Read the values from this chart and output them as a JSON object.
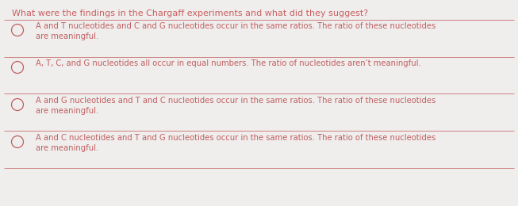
{
  "background_color": "#f0eded",
  "title": "What were the findings in the Chargaff experiments and what did they suggest?",
  "title_color": "#c96060",
  "title_fontsize": 8.0,
  "title_fontweight": "normal",
  "separator_color": "#c97070",
  "separator_linewidth": 0.6,
  "options": [
    "A and T nucleotides and C and G nucleotides occur in the same ratios. The ratio of these nucleotides\nare meaningful.",
    "A, T, C, and G nucleotides all occur in equal numbers. The ratio of nucleotides aren’t meaningful.",
    "A and G nucleotides and T and C nucleotides occur in the same ratios. The ratio of these nucleotides\nare meaningful.",
    "A and C nucleotides and T and G nucleotides occur in the same ratios. The ratio of these nucleotides\nare meaningful."
  ],
  "option_color": "#c06060",
  "option_fontsize": 7.2,
  "circle_color": "#c06060",
  "figsize": [
    6.53,
    2.6
  ],
  "dpi": 100
}
